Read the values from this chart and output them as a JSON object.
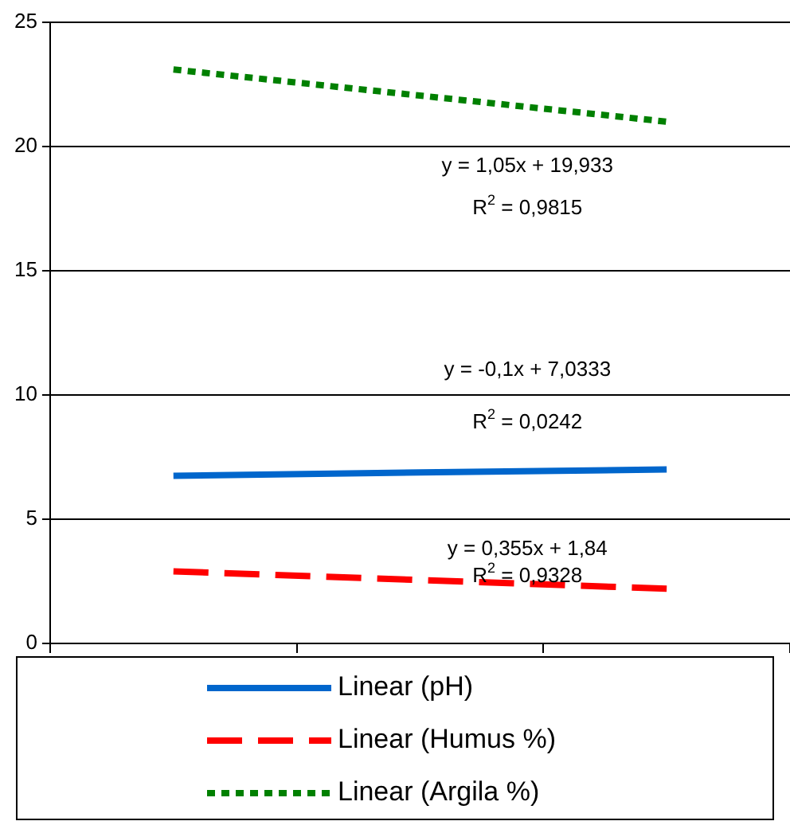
{
  "chart_data": {
    "type": "line",
    "categories": [
      null,
      null,
      null
    ],
    "series": [
      {
        "name": "Linear (pH)",
        "color": "#0066cc",
        "values": [
          6.75,
          6.88,
          7.0
        ],
        "line_style": "solid"
      },
      {
        "name": "Linear (Humus %)",
        "color": "#ff0000",
        "values": [
          2.9,
          2.55,
          2.2
        ],
        "line_style": "dashed"
      },
      {
        "name": "Linear (Argila %)",
        "color": "#008000",
        "values": [
          23.1,
          22.05,
          21.0
        ],
        "line_style": "dotted"
      }
    ],
    "ylim": [
      0,
      25
    ],
    "yticks": [
      0,
      5,
      10,
      15,
      20,
      25
    ],
    "grid": "y",
    "legend": "bottom",
    "marker": "none",
    "tick_labels": "y",
    "annotations": [
      "y = 1,05x + 19,933",
      "R$^{2}$ = 0,9815",
      "y = -0,1x + 7,0333",
      "R$^{2}$ = 0,0242",
      "y = 0,355x + 1,84",
      "R$^{2}$ = 0,9328"
    ]
  }
}
